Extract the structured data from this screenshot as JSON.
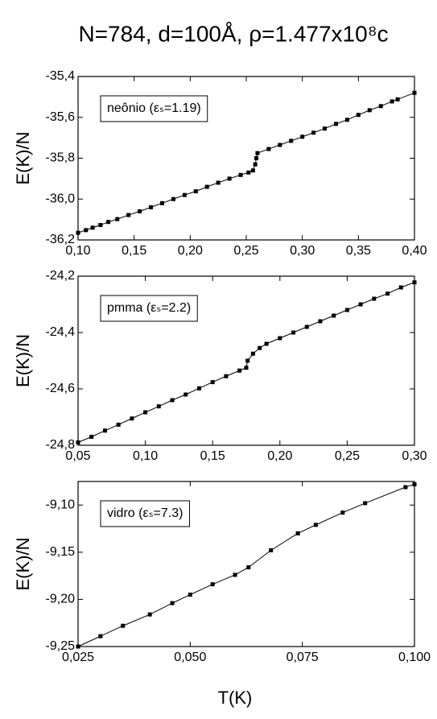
{
  "chart_data": [
    {
      "type": "line",
      "title": "N=784, d=100Å, ρ=1.477x10⁸c",
      "ylabel": "E(K)/N",
      "annotation": "neônio (εₛ=1.19)",
      "color": "#000000",
      "x": [
        0.1,
        0.107,
        0.113,
        0.12,
        0.127,
        0.135,
        0.145,
        0.155,
        0.165,
        0.175,
        0.185,
        0.195,
        0.205,
        0.215,
        0.225,
        0.235,
        0.245,
        0.252,
        0.256,
        0.258,
        0.259,
        0.26,
        0.27,
        0.28,
        0.29,
        0.3,
        0.31,
        0.32,
        0.33,
        0.34,
        0.35,
        0.36,
        0.37,
        0.38,
        0.385,
        0.4
      ],
      "values": [
        -36.165,
        -36.152,
        -36.14,
        -36.127,
        -36.112,
        -36.098,
        -36.078,
        -36.06,
        -36.04,
        -36.02,
        -36.0,
        -35.98,
        -35.962,
        -35.94,
        -35.92,
        -35.9,
        -35.882,
        -35.87,
        -35.86,
        -35.83,
        -35.8,
        -35.775,
        -35.755,
        -35.735,
        -35.715,
        -35.695,
        -35.675,
        -35.655,
        -35.632,
        -35.612,
        -35.588,
        -35.565,
        -35.545,
        -35.522,
        -35.512,
        -35.48
      ],
      "xlim": [
        0.1,
        0.4
      ],
      "ylim": [
        -36.2,
        -35.4
      ],
      "xticks": [
        {
          "value": 0.1,
          "label": "0,10"
        },
        {
          "value": 0.15,
          "label": "0,15"
        },
        {
          "value": 0.2,
          "label": "0,20"
        },
        {
          "value": 0.25,
          "label": "0,25"
        },
        {
          "value": 0.3,
          "label": "0,30"
        },
        {
          "value": 0.35,
          "label": "0,35"
        },
        {
          "value": 0.4,
          "label": "0,40"
        }
      ],
      "yticks": [
        {
          "value": -36.2,
          "label": "-36,2"
        },
        {
          "value": -36.0,
          "label": "-36,0"
        },
        {
          "value": -35.8,
          "label": "-35,8"
        },
        {
          "value": -35.6,
          "label": "-35,6"
        },
        {
          "value": -35.4,
          "label": "-35,4"
        }
      ]
    },
    {
      "type": "line",
      "ylabel": "E(K)/N",
      "annotation": "pmma (εₛ=2.2)",
      "color": "#000000",
      "x": [
        0.05,
        0.06,
        0.07,
        0.08,
        0.09,
        0.1,
        0.11,
        0.12,
        0.13,
        0.14,
        0.15,
        0.16,
        0.17,
        0.175,
        0.176,
        0.18,
        0.185,
        0.19,
        0.2,
        0.21,
        0.22,
        0.23,
        0.24,
        0.25,
        0.26,
        0.27,
        0.28,
        0.29,
        0.3
      ],
      "values": [
        -24.79,
        -24.77,
        -24.748,
        -24.727,
        -24.705,
        -24.683,
        -24.662,
        -24.64,
        -24.62,
        -24.598,
        -24.576,
        -24.555,
        -24.535,
        -24.525,
        -24.5,
        -24.475,
        -24.455,
        -24.44,
        -24.42,
        -24.4,
        -24.38,
        -24.36,
        -24.34,
        -24.32,
        -24.3,
        -24.28,
        -24.262,
        -24.24,
        -24.222
      ],
      "xlim": [
        0.05,
        0.3
      ],
      "ylim": [
        -24.8,
        -24.2
      ],
      "xticks": [
        {
          "value": 0.05,
          "label": "0,05"
        },
        {
          "value": 0.1,
          "label": "0,10"
        },
        {
          "value": 0.15,
          "label": "0,15"
        },
        {
          "value": 0.2,
          "label": "0,20"
        },
        {
          "value": 0.25,
          "label": "0,25"
        },
        {
          "value": 0.3,
          "label": "0,30"
        }
      ],
      "yticks": [
        {
          "value": -24.8,
          "label": "-24,8"
        },
        {
          "value": -24.6,
          "label": "-24,6"
        },
        {
          "value": -24.4,
          "label": "-24,4"
        },
        {
          "value": -24.2,
          "label": "-24,2"
        }
      ]
    },
    {
      "type": "line",
      "ylabel": "E(K)/N",
      "xlabel": "T(K)",
      "annotation": "vidro (εₛ=7.3)",
      "color": "#000000",
      "x": [
        0.025,
        0.03,
        0.035,
        0.041,
        0.046,
        0.05,
        0.055,
        0.06,
        0.063,
        0.068,
        0.074,
        0.078,
        0.084,
        0.089,
        0.098,
        0.1
      ],
      "values": [
        -9.25,
        -9.239,
        -9.228,
        -9.216,
        -9.204,
        -9.195,
        -9.184,
        -9.174,
        -9.166,
        -9.148,
        -9.13,
        -9.121,
        -9.108,
        -9.098,
        -9.081,
        -9.078
      ],
      "xlim": [
        0.025,
        0.1
      ],
      "ylim": [
        -9.25,
        -9.075
      ],
      "xticks": [
        {
          "value": 0.025,
          "label": "0,025"
        },
        {
          "value": 0.05,
          "label": "0,050"
        },
        {
          "value": 0.075,
          "label": "0,075"
        },
        {
          "value": 0.1,
          "label": "0,100"
        }
      ],
      "yticks": [
        {
          "value": -9.25,
          "label": "-9,25"
        },
        {
          "value": -9.2,
          "label": "-9,20"
        },
        {
          "value": -9.15,
          "label": "-9,15"
        },
        {
          "value": -9.1,
          "label": "-9,10"
        }
      ]
    }
  ]
}
